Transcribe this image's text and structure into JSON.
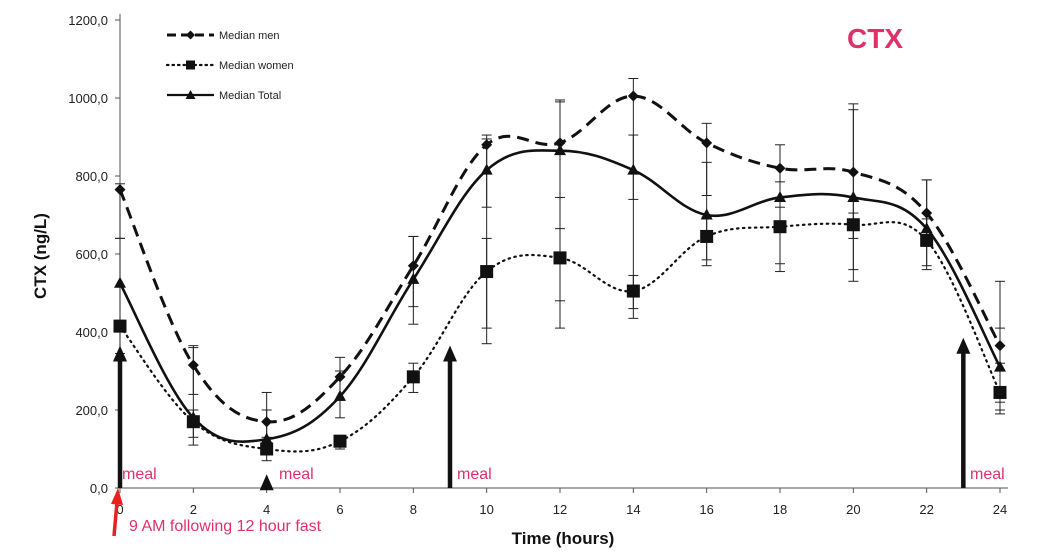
{
  "chart_data": {
    "type": "line",
    "title": "CTX",
    "xlabel": "Time (hours)",
    "ylabel": "CTX (ng/L)",
    "xlim": [
      0,
      24
    ],
    "ylim": [
      0,
      1200
    ],
    "x_ticks": [
      "0",
      "2",
      "4",
      "6",
      "8",
      "10",
      "12",
      "14",
      "16",
      "18",
      "20",
      "22",
      "24"
    ],
    "y_ticks": [
      "0,0",
      "200,0",
      "400,0",
      "600,0",
      "800,0",
      "1000,0",
      "1200,0"
    ],
    "x": [
      0,
      2,
      4,
      6,
      8,
      10,
      12,
      14,
      16,
      18,
      20,
      22,
      24
    ],
    "legend_position": "top-left",
    "series": [
      {
        "name": "Median men",
        "style": "dashed",
        "marker": "diamond",
        "values": [
          765,
          315,
          170,
          285,
          570,
          880,
          885,
          1005,
          885,
          820,
          810,
          705,
          365
        ],
        "err_low": [
          640,
          240,
          110,
          225,
          465,
          720,
          745,
          740,
          750,
          720,
          640,
          620,
          200
        ],
        "err_high": [
          780,
          365,
          245,
          335,
          645,
          895,
          995,
          1050,
          935,
          880,
          985,
          790,
          530
        ]
      },
      {
        "name": "Median women",
        "style": "dotted",
        "marker": "square",
        "values": [
          415,
          170,
          100,
          120,
          285,
          555,
          590,
          505,
          645,
          670,
          675,
          635,
          245
        ],
        "err_low": [
          345,
          130,
          70,
          100,
          245,
          370,
          410,
          435,
          570,
          555,
          530,
          570,
          190
        ],
        "err_high": [
          430,
          200,
          130,
          135,
          320,
          640,
          665,
          545,
          695,
          685,
          705,
          690,
          320
        ]
      },
      {
        "name": "Median Total",
        "style": "solid",
        "marker": "triangle",
        "values": [
          525,
          180,
          125,
          235,
          535,
          815,
          865,
          815,
          700,
          745,
          745,
          665,
          310
        ],
        "err_low": [
          420,
          110,
          85,
          180,
          420,
          410,
          480,
          460,
          585,
          575,
          560,
          560,
          220
        ],
        "err_high": [
          640,
          360,
          200,
          300,
          645,
          905,
          990,
          905,
          835,
          785,
          970,
          790,
          410
        ]
      }
    ],
    "annotations": [
      {
        "text": "meal",
        "x": 0
      },
      {
        "text": "meal",
        "x": 4
      },
      {
        "text": "meal",
        "x": 9
      },
      {
        "text": "meal",
        "x": 23
      },
      {
        "text": "9 AM following 12 hour fast",
        "x": 0
      }
    ],
    "meal_arrow_tops": [
      350,
      20,
      350,
      370
    ]
  },
  "colors": {
    "series": "#111111",
    "accent": "#e0306a",
    "fast_arrow": "#e8201f"
  }
}
